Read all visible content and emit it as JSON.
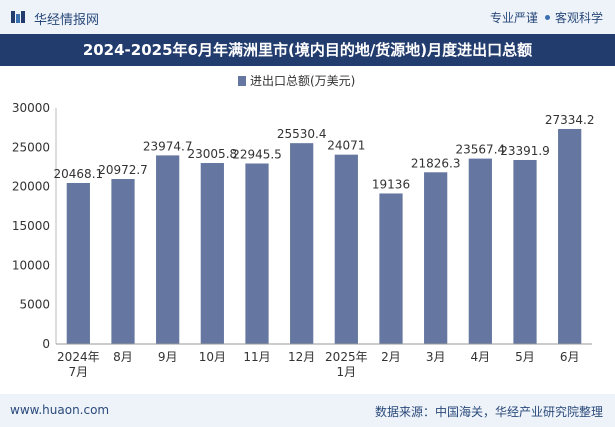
{
  "header": {
    "brand": "华经情报网",
    "tag1": "专业严谨",
    "tag2": "客观科学"
  },
  "title": "2024-2025年6月年满洲里市(境内目的地/货源地)月度进出口总额",
  "footer": {
    "website": "www.huaon.com",
    "source": "数据来源：中国海关，华经产业研究院整理"
  },
  "colors": {
    "bar": "#6576a0",
    "title_bg": "#223c6e",
    "header_bg": "#eef3fa"
  },
  "chart_data": {
    "type": "bar",
    "title": "2024-2025年6月年满洲里市(境内目的地/货源地)月度进出口总额",
    "categories": [
      "2024年7月",
      "8月",
      "9月",
      "10月",
      "11月",
      "12月",
      "2025年1月",
      "2月",
      "3月",
      "4月",
      "5月",
      "6月"
    ],
    "series": [
      {
        "name": "进出口总额(万美元)",
        "values": [
          20468.1,
          20972.7,
          23974.7,
          23005.8,
          22945.5,
          25530.4,
          24071,
          19136,
          21826.3,
          23567.4,
          23391.9,
          27334.2
        ],
        "labels": [
          "20468.1",
          "20972.7",
          "23974.7",
          "23005.8",
          "22945.5",
          "25530.4",
          "24071",
          "19136",
          "21826.3",
          "23567.4",
          "23391.9",
          "27334.2"
        ]
      }
    ],
    "yticks": [
      "0",
      "5000",
      "10000",
      "15000",
      "20000",
      "25000",
      "30000"
    ],
    "ylim": [
      0,
      30000
    ],
    "xlabel": "",
    "ylabel": "",
    "legend_position": "top-center",
    "grid": false
  }
}
